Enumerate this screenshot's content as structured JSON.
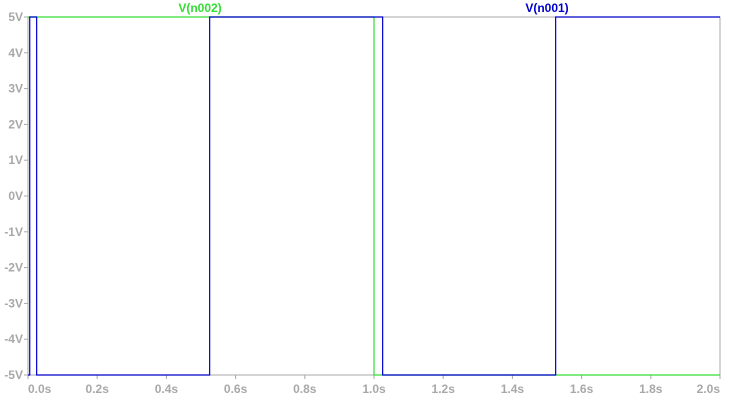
{
  "chart_data": {
    "type": "line",
    "title": "",
    "xlabel": "",
    "ylabel": "",
    "xlim": [
      0,
      2.0
    ],
    "ylim": [
      -5,
      5
    ],
    "x_ticks": [
      "0.0s",
      "0.2s",
      "0.4s",
      "0.6s",
      "0.8s",
      "1.0s",
      "1.2s",
      "1.4s",
      "1.6s",
      "1.8s",
      "2.0s"
    ],
    "y_ticks": [
      "5V",
      "4V",
      "3V",
      "2V",
      "1V",
      "0V",
      "-1V",
      "-2V",
      "-3V",
      "-4V",
      "-5V"
    ],
    "grid": false,
    "legend_position": "top",
    "series": [
      {
        "name": "V(n002)",
        "color": "#33dd33",
        "points": [
          [
            0.0,
            5
          ],
          [
            1.0,
            5
          ],
          [
            1.0,
            -5
          ],
          [
            2.0,
            -5
          ]
        ]
      },
      {
        "name": "V(n001)",
        "color": "#0000cc",
        "points": [
          [
            0.0,
            -5
          ],
          [
            0.005,
            -5
          ],
          [
            0.005,
            5
          ],
          [
            0.025,
            5
          ],
          [
            0.025,
            -5
          ],
          [
            0.525,
            -5
          ],
          [
            0.525,
            5
          ],
          [
            1.025,
            5
          ],
          [
            1.025,
            -5
          ],
          [
            1.525,
            -5
          ],
          [
            1.525,
            5
          ],
          [
            2.0,
            5
          ]
        ]
      }
    ]
  }
}
